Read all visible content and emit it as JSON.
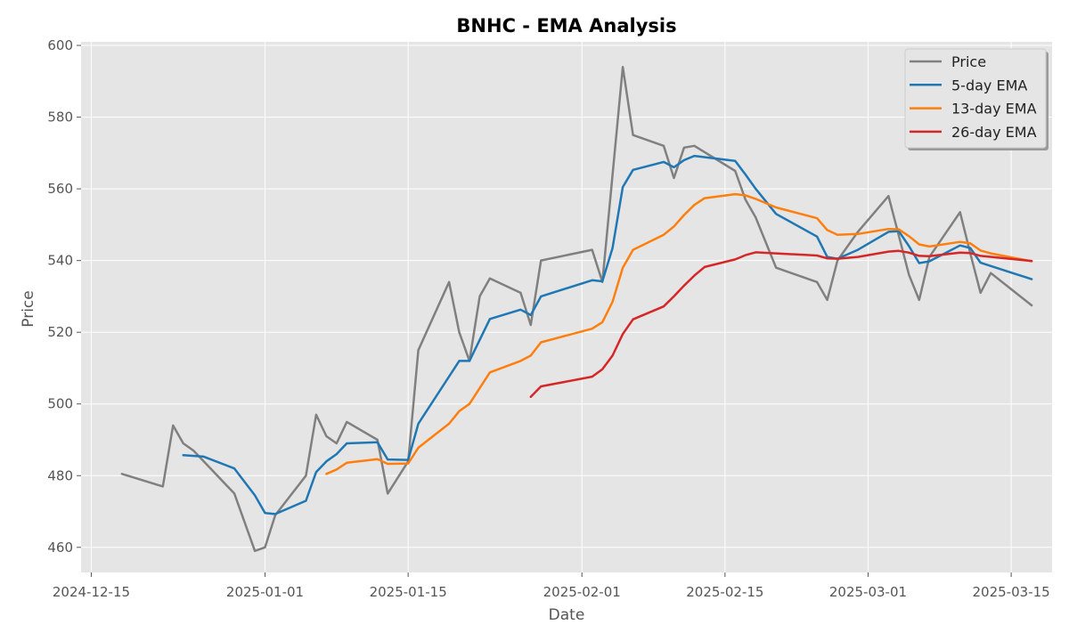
{
  "chart_data": {
    "type": "line",
    "title": "BNHC - EMA Analysis",
    "xlabel": "Date",
    "ylabel": "Price",
    "ylim": [
      453,
      601
    ],
    "xlim": [
      "2024-12-14",
      "2025-03-19"
    ],
    "x_ticks": [
      "2024-12-15",
      "2025-01-01",
      "2025-01-15",
      "2025-02-01",
      "2025-02-15",
      "2025-03-01",
      "2025-03-15"
    ],
    "y_ticks": [
      460,
      480,
      500,
      520,
      540,
      560,
      580,
      600
    ],
    "grid": true,
    "legend_position": "top-right",
    "series": [
      {
        "name": "Price",
        "color": "#808080",
        "points": [
          [
            "2024-12-18",
            480.5
          ],
          [
            "2024-12-22",
            477
          ],
          [
            "2024-12-23",
            494
          ],
          [
            "2024-12-24",
            489
          ],
          [
            "2024-12-25",
            487
          ],
          [
            "2024-12-29",
            475
          ],
          [
            "2024-12-31",
            459
          ],
          [
            "2025-01-01",
            460
          ],
          [
            "2025-01-02",
            469
          ],
          [
            "2025-01-05",
            480
          ],
          [
            "2025-01-06",
            497
          ],
          [
            "2025-01-07",
            491
          ],
          [
            "2025-01-08",
            489
          ],
          [
            "2025-01-09",
            495
          ],
          [
            "2025-01-12",
            490
          ],
          [
            "2025-01-13",
            475
          ],
          [
            "2025-01-15",
            484
          ],
          [
            "2025-01-16",
            515
          ],
          [
            "2025-01-19",
            534
          ],
          [
            "2025-01-20",
            520
          ],
          [
            "2025-01-21",
            512
          ],
          [
            "2025-01-22",
            530
          ],
          [
            "2025-01-23",
            535
          ],
          [
            "2025-01-26",
            531
          ],
          [
            "2025-01-27",
            522
          ],
          [
            "2025-01-28",
            540
          ],
          [
            "2025-02-02",
            543
          ],
          [
            "2025-02-03",
            534
          ],
          [
            "2025-02-05",
            594
          ],
          [
            "2025-02-06",
            575
          ],
          [
            "2025-02-09",
            572
          ],
          [
            "2025-02-10",
            563
          ],
          [
            "2025-02-11",
            571.5
          ],
          [
            "2025-02-12",
            572
          ],
          [
            "2025-02-16",
            565
          ],
          [
            "2025-02-17",
            557
          ],
          [
            "2025-02-18",
            552
          ],
          [
            "2025-02-20",
            538
          ],
          [
            "2025-02-24",
            534
          ],
          [
            "2025-02-25",
            529
          ],
          [
            "2025-02-26",
            540
          ],
          [
            "2025-02-28",
            548
          ],
          [
            "2025-03-03",
            558
          ],
          [
            "2025-03-05",
            536
          ],
          [
            "2025-03-06",
            529
          ],
          [
            "2025-03-07",
            541
          ],
          [
            "2025-03-10",
            553.5
          ],
          [
            "2025-03-11",
            542
          ],
          [
            "2025-03-12",
            531
          ],
          [
            "2025-03-13",
            536.5
          ],
          [
            "2025-03-17",
            527.5
          ]
        ]
      },
      {
        "name": "5-day EMA",
        "color": "#1f77b4",
        "points": [
          [
            "2024-12-24",
            485.7
          ],
          [
            "2024-12-26",
            485.3
          ],
          [
            "2024-12-29",
            482
          ],
          [
            "2024-12-31",
            474.5
          ],
          [
            "2025-01-01",
            469.6
          ],
          [
            "2025-01-02",
            469.3
          ],
          [
            "2025-01-05",
            473
          ],
          [
            "2025-01-06",
            481
          ],
          [
            "2025-01-07",
            484
          ],
          [
            "2025-01-08",
            486
          ],
          [
            "2025-01-09",
            489
          ],
          [
            "2025-01-12",
            489.3
          ],
          [
            "2025-01-13",
            484.5
          ],
          [
            "2025-01-15",
            484.4
          ],
          [
            "2025-01-16",
            494.5
          ],
          [
            "2025-01-20",
            512
          ],
          [
            "2025-01-21",
            512
          ],
          [
            "2025-01-23",
            523.7
          ],
          [
            "2025-01-26",
            526.3
          ],
          [
            "2025-01-27",
            524.8
          ],
          [
            "2025-01-28",
            530
          ],
          [
            "2025-02-02",
            534.5
          ],
          [
            "2025-02-03",
            534.2
          ],
          [
            "2025-02-04",
            543.5
          ],
          [
            "2025-02-05",
            560.5
          ],
          [
            "2025-02-06",
            565.3
          ],
          [
            "2025-02-09",
            567.5
          ],
          [
            "2025-02-10",
            566
          ],
          [
            "2025-02-11",
            568
          ],
          [
            "2025-02-12",
            569.2
          ],
          [
            "2025-02-16",
            567.8
          ],
          [
            "2025-02-17",
            564
          ],
          [
            "2025-02-18",
            560
          ],
          [
            "2025-02-20",
            553
          ],
          [
            "2025-02-24",
            546.7
          ],
          [
            "2025-02-25",
            541
          ],
          [
            "2025-02-26",
            540.5
          ],
          [
            "2025-02-28",
            543
          ],
          [
            "2025-03-03",
            548
          ],
          [
            "2025-03-04",
            548.2
          ],
          [
            "2025-03-05",
            544
          ],
          [
            "2025-03-06",
            539.3
          ],
          [
            "2025-03-07",
            539.8
          ],
          [
            "2025-03-10",
            544.2
          ],
          [
            "2025-03-11",
            543.5
          ],
          [
            "2025-03-12",
            539.4
          ],
          [
            "2025-03-17",
            534.8
          ]
        ]
      },
      {
        "name": "13-day EMA",
        "color": "#ff7f0e",
        "points": [
          [
            "2025-01-07",
            480.5
          ],
          [
            "2025-01-08",
            481.7
          ],
          [
            "2025-01-09",
            483.6
          ],
          [
            "2025-01-12",
            484.6
          ],
          [
            "2025-01-13",
            483.3
          ],
          [
            "2025-01-15",
            483.4
          ],
          [
            "2025-01-16",
            487.8
          ],
          [
            "2025-01-19",
            494.5
          ],
          [
            "2025-01-20",
            498
          ],
          [
            "2025-01-21",
            500
          ],
          [
            "2025-01-23",
            508.8
          ],
          [
            "2025-01-26",
            512
          ],
          [
            "2025-01-27",
            513.5
          ],
          [
            "2025-01-28",
            517.2
          ],
          [
            "2025-02-02",
            521
          ],
          [
            "2025-02-03",
            522.8
          ],
          [
            "2025-02-04",
            528.5
          ],
          [
            "2025-02-05",
            538
          ],
          [
            "2025-02-06",
            543
          ],
          [
            "2025-02-09",
            547.2
          ],
          [
            "2025-02-10",
            549.5
          ],
          [
            "2025-02-11",
            552.7
          ],
          [
            "2025-02-12",
            555.5
          ],
          [
            "2025-02-13",
            557.4
          ],
          [
            "2025-02-16",
            558.5
          ],
          [
            "2025-02-17",
            558.2
          ],
          [
            "2025-02-18",
            557.2
          ],
          [
            "2025-02-20",
            554.8
          ],
          [
            "2025-02-24",
            551.8
          ],
          [
            "2025-02-25",
            548.5
          ],
          [
            "2025-02-26",
            547.2
          ],
          [
            "2025-02-28",
            547.4
          ],
          [
            "2025-03-03",
            548.8
          ],
          [
            "2025-03-04",
            548.7
          ],
          [
            "2025-03-05",
            546.8
          ],
          [
            "2025-03-06",
            544.5
          ],
          [
            "2025-03-07",
            543.9
          ],
          [
            "2025-03-10",
            545.2
          ],
          [
            "2025-03-11",
            544.8
          ],
          [
            "2025-03-12",
            542.8
          ],
          [
            "2025-03-13",
            542
          ],
          [
            "2025-03-17",
            539.8
          ]
        ]
      },
      {
        "name": "26-day EMA",
        "color": "#d62728",
        "points": [
          [
            "2025-01-27",
            502
          ],
          [
            "2025-01-28",
            504.9
          ],
          [
            "2025-02-02",
            507.6
          ],
          [
            "2025-02-03",
            509.7
          ],
          [
            "2025-02-04",
            513.5
          ],
          [
            "2025-02-05",
            519.5
          ],
          [
            "2025-02-06",
            523.6
          ],
          [
            "2025-02-09",
            527.2
          ],
          [
            "2025-02-10",
            530
          ],
          [
            "2025-02-11",
            533
          ],
          [
            "2025-02-12",
            535.8
          ],
          [
            "2025-02-13",
            538.2
          ],
          [
            "2025-02-16",
            540.3
          ],
          [
            "2025-02-17",
            541.5
          ],
          [
            "2025-02-18",
            542.3
          ],
          [
            "2025-02-20",
            542
          ],
          [
            "2025-02-24",
            541.4
          ],
          [
            "2025-02-25",
            540.6
          ],
          [
            "2025-02-26",
            540.5
          ],
          [
            "2025-02-28",
            541
          ],
          [
            "2025-03-03",
            542.5
          ],
          [
            "2025-03-04",
            542.7
          ],
          [
            "2025-03-05",
            542.2
          ],
          [
            "2025-03-06",
            541.3
          ],
          [
            "2025-03-07",
            541.2
          ],
          [
            "2025-03-10",
            542.2
          ],
          [
            "2025-03-11",
            542.1
          ],
          [
            "2025-03-12",
            541.3
          ],
          [
            "2025-03-17",
            539.9
          ]
        ]
      }
    ]
  }
}
